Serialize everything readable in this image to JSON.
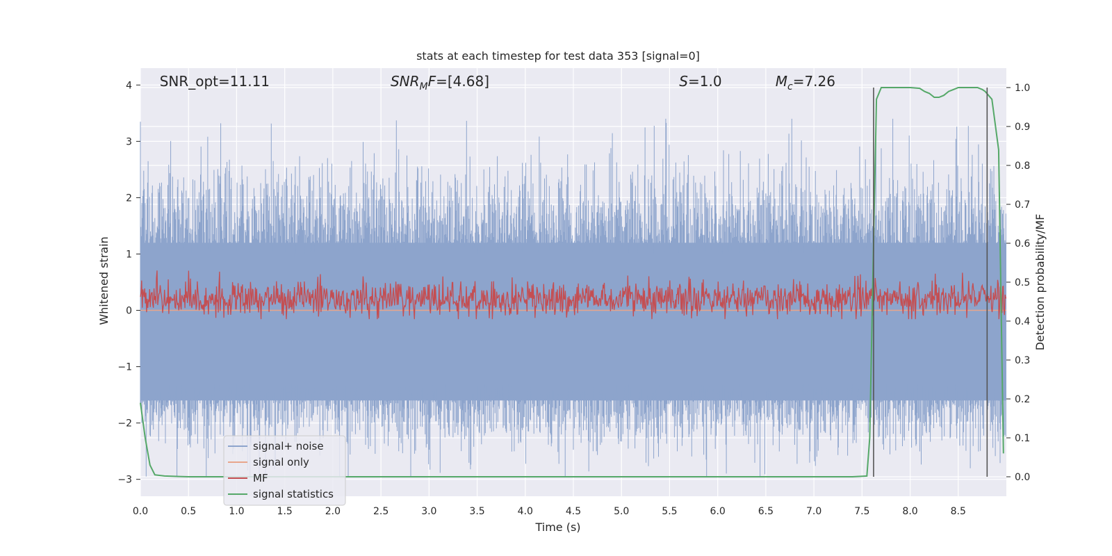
{
  "chart_data": {
    "type": "line",
    "title": "stats at each timestep for test data 353 [signal=0]",
    "xlabel": "Time (s)",
    "ylabel": "Whitened strain",
    "ylabel_right": "Detection probability/MF",
    "xlim": [
      0.0,
      9.0
    ],
    "ylim": [
      -3.3,
      4.3
    ],
    "ylim_right": [
      -0.05,
      1.05
    ],
    "xticks": [
      0.0,
      0.5,
      1.0,
      1.5,
      2.0,
      2.5,
      3.0,
      3.5,
      4.0,
      4.5,
      5.0,
      5.5,
      6.0,
      6.5,
      7.0,
      7.5,
      8.0,
      8.5
    ],
    "yticks": [
      -3,
      -2,
      -1,
      0,
      1,
      2,
      3,
      4
    ],
    "yticks_right": [
      0.0,
      0.1,
      0.2,
      0.3,
      0.4,
      0.5,
      0.6,
      0.7,
      0.8,
      0.9,
      1.0
    ],
    "grid": true,
    "legend_position": "lower-left",
    "annotations": [
      {
        "id": "snr-opt",
        "text": "SNR_opt=11.11",
        "x": 0.2
      },
      {
        "id": "snr-mf",
        "text": "SNR_MF=[4.68]",
        "x": 2.6
      },
      {
        "id": "s-value",
        "text": "S=1.0",
        "x": 5.6
      },
      {
        "id": "mc-value",
        "text": "M_c=7.26",
        "x": 6.6
      }
    ],
    "vertical_lines": [
      7.62,
      8.8
    ],
    "series": [
      {
        "name": "signal+ noise",
        "color": "#8da4cc",
        "axis": "left",
        "description": "whitened strain noise, roughly spanning -2.9 to 3.4 with dense core between -1.6 and 1.2"
      },
      {
        "name": "signal only",
        "color": "#e8a58b",
        "axis": "left",
        "values_constant": 0.0
      },
      {
        "name": "MF",
        "color": "#c44e52",
        "axis": "right",
        "description": "matched filter output fluctuating around 0.45 on right axis"
      },
      {
        "name": "signal statistics",
        "color": "#55a868",
        "axis": "right",
        "x": [
          0.0,
          0.05,
          0.1,
          0.15,
          0.25,
          0.5,
          1.0,
          2.0,
          3.0,
          4.0,
          5.0,
          6.0,
          7.0,
          7.4,
          7.55,
          7.58,
          7.62,
          7.65,
          7.7,
          7.8,
          8.0,
          8.1,
          8.15,
          8.2,
          8.25,
          8.3,
          8.35,
          8.4,
          8.45,
          8.5,
          8.6,
          8.7,
          8.75,
          8.78,
          8.85,
          8.92,
          8.97
        ],
        "values": [
          0.19,
          0.1,
          0.03,
          0.005,
          0.002,
          0.0,
          0.0,
          0.0,
          0.0,
          0.0,
          0.0,
          0.0,
          0.0,
          0.0,
          0.002,
          0.1,
          0.6,
          0.97,
          1.0,
          1.0,
          1.0,
          0.998,
          0.99,
          0.985,
          0.975,
          0.975,
          0.98,
          0.99,
          0.995,
          1.0,
          1.0,
          1.0,
          0.995,
          0.99,
          0.97,
          0.84,
          0.06
        ]
      }
    ]
  }
}
